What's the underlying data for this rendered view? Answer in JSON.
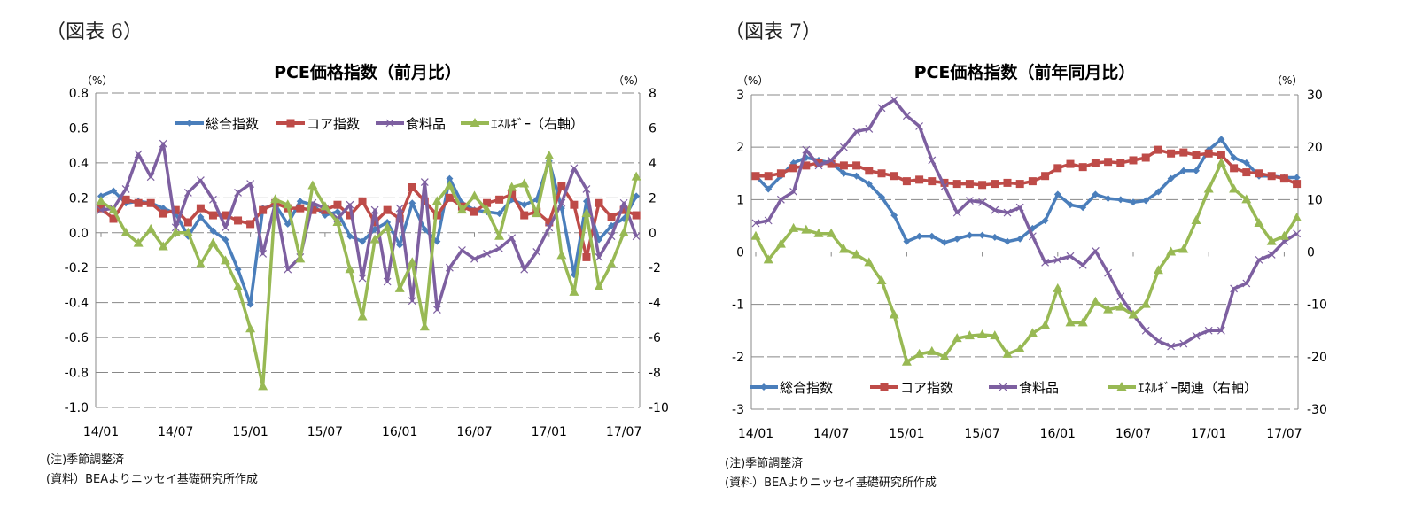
{
  "figures": [
    {
      "label": "（図表 6）",
      "note1": "(注)季節調整済",
      "note2": "(資料）BEAよりニッセイ基礎研究所作成"
    },
    {
      "label": "（図表 7）",
      "note1": "(注)季節調整済",
      "note2": "(資料）BEAよりニッセイ基礎研究所作成"
    }
  ],
  "chart_data": [
    {
      "type": "line",
      "title": "PCE価格指数（前月比）",
      "left_unit": "（%）",
      "right_unit": "（%）",
      "ylim": [
        -1.0,
        0.8
      ],
      "yticks": [
        "0.8",
        "0.6",
        "0.4",
        "0.2",
        "0.0",
        "-0.2",
        "-0.4",
        "-0.6",
        "-0.8",
        "-1.0"
      ],
      "y2lim": [
        -10,
        8
      ],
      "y2ticks": [
        "8",
        "6",
        "4",
        "2",
        "0",
        "-2",
        "-4",
        "-6",
        "-8",
        "-10"
      ],
      "xticks": [
        "14/01",
        "14/07",
        "15/01",
        "15/07",
        "16/01",
        "16/07",
        "17/01",
        "17/07"
      ],
      "x_start": "14/01",
      "grid": true,
      "legend": "top",
      "series": [
        {
          "name": "総合指数",
          "color": "#4a7ebb",
          "marker": "diamond",
          "axis": "left",
          "values": [
            0.21,
            0.24,
            0.17,
            0.18,
            0.17,
            0.14,
            0.11,
            -0.02,
            0.09,
            0.01,
            -0.04,
            -0.21,
            -0.41,
            0.14,
            0.16,
            0.05,
            0.18,
            0.16,
            0.1,
            0.12,
            -0.02,
            -0.05,
            0.02,
            0.06,
            -0.07,
            0.17,
            0.02,
            -0.05,
            0.31,
            0.17,
            0.13,
            0.12,
            0.11,
            0.19,
            0.16,
            0.19,
            0.41,
            0.14,
            -0.24,
            0.18,
            -0.04,
            0.04,
            0.08,
            0.21
          ]
        },
        {
          "name": "コア指数",
          "color": "#be4b48",
          "marker": "square",
          "axis": "left",
          "values": [
            0.14,
            0.08,
            0.19,
            0.17,
            0.17,
            0.11,
            0.13,
            0.06,
            0.14,
            0.1,
            0.1,
            0.07,
            0.05,
            0.13,
            0.17,
            0.14,
            0.14,
            0.13,
            0.13,
            0.16,
            0.1,
            0.18,
            0.06,
            0.13,
            0.08,
            0.26,
            0.18,
            0.1,
            0.2,
            0.15,
            0.12,
            0.17,
            0.19,
            0.22,
            0.1,
            0.12,
            0.06,
            0.27,
            0.16,
            -0.14,
            0.17,
            0.09,
            0.13,
            0.1
          ]
        },
        {
          "name": "食料品",
          "color": "#7d5fa0",
          "marker": "x",
          "axis": "left",
          "values": [
            0.13,
            0.14,
            0.25,
            0.45,
            0.32,
            0.51,
            0.03,
            0.23,
            0.3,
            0.19,
            0.03,
            0.23,
            0.28,
            -0.12,
            0.17,
            -0.21,
            -0.14,
            0.17,
            0.14,
            0.08,
            0.16,
            -0.26,
            0.13,
            -0.28,
            0.14,
            -0.39,
            0.29,
            -0.44,
            -0.2,
            -0.1,
            -0.15,
            -0.12,
            -0.09,
            -0.03,
            -0.21,
            -0.11,
            0.03,
            0.17,
            0.37,
            0.25,
            -0.14,
            -0.02,
            0.17,
            -0.02
          ]
        },
        {
          "name": "ｴﾈﾙｷﾞｰ（右軸）",
          "color": "#98b954",
          "marker": "triangle",
          "axis": "right",
          "values": [
            1.8,
            1.3,
            0.0,
            -0.6,
            0.2,
            -0.8,
            0.0,
            0.0,
            -1.8,
            -0.6,
            -1.6,
            -3.1,
            -5.5,
            -8.8,
            1.9,
            1.6,
            -1.5,
            2.7,
            1.5,
            0.6,
            -2.1,
            -4.8,
            -0.4,
            0.3,
            -3.2,
            -1.7,
            -5.4,
            1.8,
            2.7,
            1.3,
            2.1,
            1.3,
            -0.2,
            2.6,
            2.8,
            1.1,
            4.4,
            -1.3,
            -3.4,
            1.1,
            -3.1,
            -1.8,
            0.0,
            3.2
          ]
        }
      ]
    },
    {
      "type": "line",
      "title": "PCE価格指数（前年同月比）",
      "left_unit": "（%）",
      "right_unit": "（%）",
      "ylim": [
        -3,
        3
      ],
      "yticks": [
        "3",
        "2",
        "1",
        "0",
        "-1",
        "-2",
        "-3"
      ],
      "y2lim": [
        -30,
        30
      ],
      "y2ticks": [
        "30",
        "20",
        "10",
        "0",
        "-10",
        "-20",
        "-30"
      ],
      "xticks": [
        "14/01",
        "14/07",
        "15/01",
        "15/07",
        "16/01",
        "16/07",
        "17/01",
        "17/07"
      ],
      "x_start": "14/01",
      "grid": true,
      "legend": "bottom",
      "series": [
        {
          "name": "総合指数",
          "color": "#4a7ebb",
          "marker": "diamond",
          "axis": "left",
          "values": [
            1.45,
            1.2,
            1.45,
            1.7,
            1.8,
            1.75,
            1.7,
            1.5,
            1.45,
            1.3,
            1.05,
            0.7,
            0.2,
            0.3,
            0.3,
            0.18,
            0.25,
            0.32,
            0.32,
            0.28,
            0.2,
            0.25,
            0.45,
            0.6,
            1.1,
            0.9,
            0.85,
            1.1,
            1.02,
            1.0,
            0.95,
            0.98,
            1.15,
            1.4,
            1.55,
            1.55,
            1.95,
            2.15,
            1.8,
            1.7,
            1.45,
            1.45,
            1.42,
            1.42
          ]
        },
        {
          "name": "コア指数",
          "color": "#be4b48",
          "marker": "square",
          "axis": "left",
          "values": [
            1.45,
            1.45,
            1.5,
            1.6,
            1.65,
            1.7,
            1.68,
            1.65,
            1.65,
            1.55,
            1.5,
            1.45,
            1.35,
            1.38,
            1.35,
            1.32,
            1.3,
            1.3,
            1.28,
            1.3,
            1.32,
            1.3,
            1.35,
            1.45,
            1.6,
            1.68,
            1.62,
            1.7,
            1.72,
            1.7,
            1.75,
            1.8,
            1.95,
            1.88,
            1.9,
            1.85,
            1.88,
            1.85,
            1.6,
            1.52,
            1.5,
            1.45,
            1.4,
            1.3
          ]
        },
        {
          "name": "食料品",
          "color": "#7d5fa0",
          "marker": "x",
          "axis": "left",
          "values": [
            0.55,
            0.6,
            1.0,
            1.15,
            1.95,
            1.65,
            1.75,
            2.0,
            2.3,
            2.35,
            2.75,
            2.9,
            2.6,
            2.4,
            1.75,
            1.25,
            0.75,
            0.98,
            0.95,
            0.8,
            0.75,
            0.85,
            0.3,
            -0.2,
            -0.15,
            -0.08,
            -0.25,
            0.02,
            -0.4,
            -0.85,
            -1.2,
            -1.5,
            -1.7,
            -1.8,
            -1.75,
            -1.6,
            -1.5,
            -1.5,
            -0.7,
            -0.6,
            -0.15,
            -0.05,
            0.2,
            0.35
          ]
        },
        {
          "name": "ｴﾈﾙｷﾞｰ関連（右軸）",
          "color": "#98b954",
          "marker": "triangle",
          "axis": "right",
          "values": [
            3,
            -1.5,
            1.5,
            4.5,
            4.2,
            3.5,
            3.5,
            0.5,
            -0.5,
            -2,
            -5.5,
            -12,
            -21,
            -19.5,
            -19,
            -20,
            -16.5,
            -16,
            -15.8,
            -16,
            -19.5,
            -18.5,
            -15.5,
            -14,
            -7,
            -13.5,
            -13.5,
            -9.5,
            -11,
            -10.5,
            -12,
            -10,
            -3.5,
            0,
            0.5,
            6,
            12,
            17,
            12,
            10,
            5.5,
            2,
            3,
            6.5
          ]
        }
      ]
    }
  ]
}
